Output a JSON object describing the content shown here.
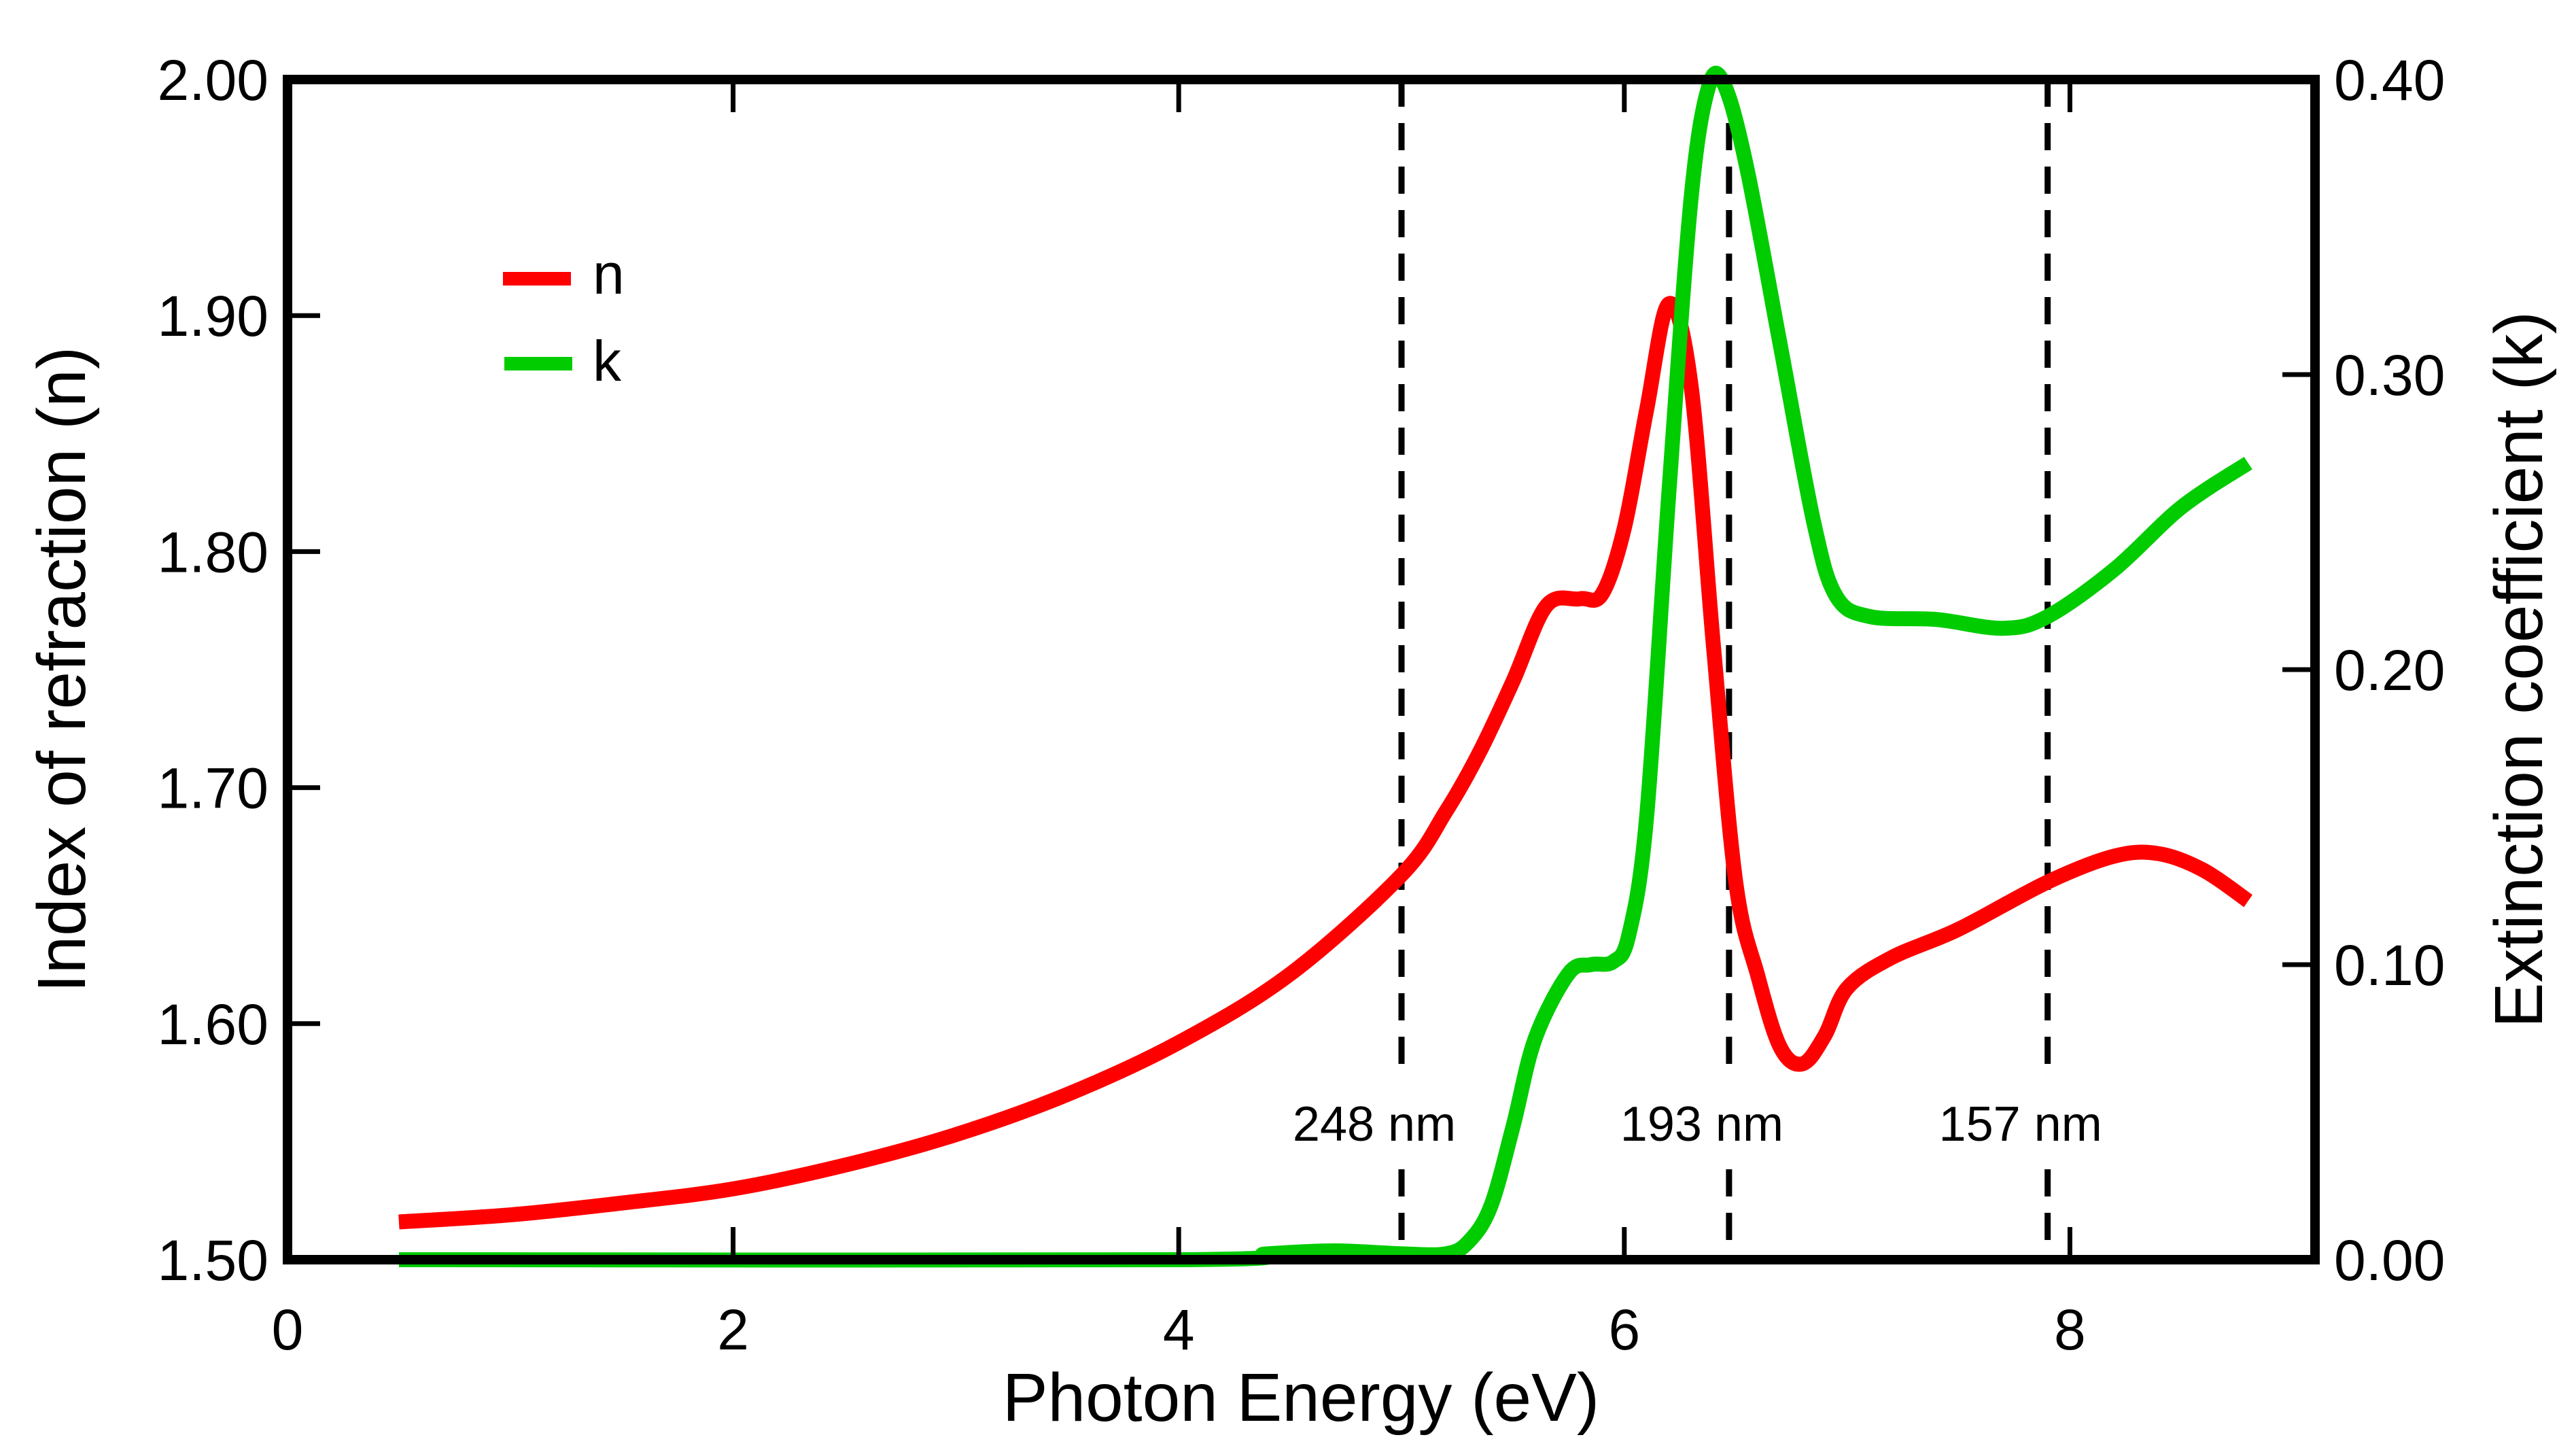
{
  "chart_data": {
    "type": "line",
    "xlabel": "Photon Energy (eV)",
    "ylabel": "Index of refraction (n)",
    "y2label": "Extinction coefficient (k)",
    "xlim": [
      0,
      9.1
    ],
    "ylim": [
      1.5,
      2.0
    ],
    "y2lim": [
      0.0,
      0.4
    ],
    "x_ticks": [
      0,
      2,
      4,
      6,
      8
    ],
    "x_tick_labels": [
      "0",
      "2",
      "4",
      "6",
      "8"
    ],
    "y_ticks": [
      1.5,
      1.6,
      1.7,
      1.8,
      1.9,
      2.0
    ],
    "y_tick_labels": [
      "1.50",
      "1.60",
      "1.70",
      "1.80",
      "1.90",
      "2.00"
    ],
    "y2_ticks": [
      0.0,
      0.1,
      0.2,
      0.3,
      0.4
    ],
    "y2_tick_labels": [
      "0.00",
      "0.10",
      "0.20",
      "0.30",
      "0.40"
    ],
    "grid": false,
    "legend_position": "top-left",
    "series": [
      {
        "name": "n",
        "axis": "left",
        "color": "#ff0000",
        "x": [
          0.5,
          1.0,
          1.5,
          2.0,
          2.5,
          3.0,
          3.5,
          4.0,
          4.5,
          5.0,
          5.2,
          5.35,
          5.5,
          5.65,
          5.8,
          5.9,
          6.0,
          6.1,
          6.2,
          6.3,
          6.4,
          6.5,
          6.6,
          6.7,
          6.8,
          6.9,
          7.0,
          7.2,
          7.5,
          7.9,
          8.2,
          8.4,
          8.6,
          8.8
        ],
        "values": [
          1.516,
          1.519,
          1.524,
          1.53,
          1.54,
          1.553,
          1.57,
          1.592,
          1.621,
          1.663,
          1.69,
          1.715,
          1.745,
          1.777,
          1.78,
          1.782,
          1.81,
          1.86,
          1.905,
          1.87,
          1.76,
          1.66,
          1.62,
          1.59,
          1.583,
          1.595,
          1.615,
          1.628,
          1.64,
          1.66,
          1.671,
          1.672,
          1.665,
          1.652
        ]
      },
      {
        "name": "k",
        "axis": "right",
        "color": "#00cc00",
        "x": [
          0.5,
          4.0,
          4.4,
          4.7,
          5.0,
          5.2,
          5.3,
          5.4,
          5.5,
          5.6,
          5.75,
          5.85,
          5.95,
          6.02,
          6.1,
          6.2,
          6.3,
          6.38,
          6.45,
          6.55,
          6.7,
          6.85,
          6.95,
          7.1,
          7.4,
          7.7,
          7.9,
          8.2,
          8.5,
          8.8
        ],
        "values": [
          0.0,
          0.0,
          0.002,
          0.003,
          0.002,
          0.002,
          0.006,
          0.018,
          0.045,
          0.075,
          0.097,
          0.1,
          0.101,
          0.11,
          0.15,
          0.26,
          0.36,
          0.398,
          0.398,
          0.37,
          0.31,
          0.25,
          0.225,
          0.218,
          0.217,
          0.214,
          0.218,
          0.234,
          0.255,
          0.27
        ]
      }
    ],
    "vlines": [
      {
        "x": 5.0,
        "label": "248 nm"
      },
      {
        "x": 6.47,
        "label": "193 nm"
      },
      {
        "x": 7.9,
        "label": "157 nm"
      }
    ]
  }
}
